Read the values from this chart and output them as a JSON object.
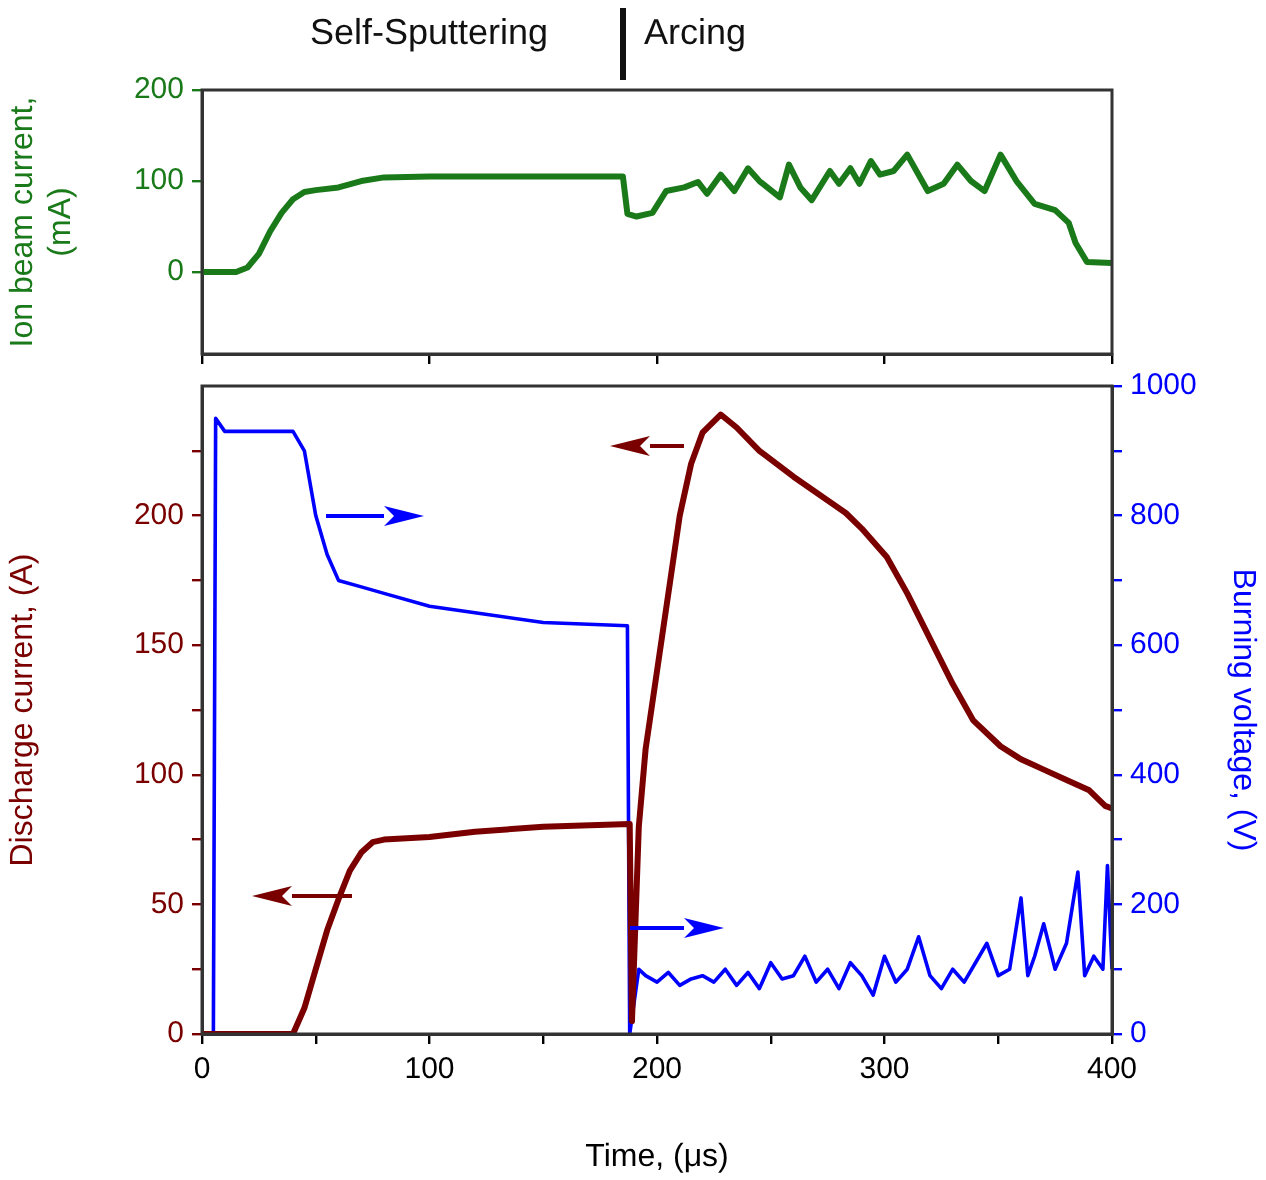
{
  "chart_data": [
    {
      "type": "line",
      "ylabel": "Ion beam current, (mA)",
      "annotations": [
        "Self-Sputtering",
        "Arcing"
      ],
      "xlim": [
        0,
        400
      ],
      "xticks": [
        0,
        100,
        200,
        300,
        400
      ],
      "ylim": [
        -90,
        200
      ],
      "yticks": [
        0,
        100,
        200
      ],
      "tick_labels": "y",
      "series": [
        {
          "color": "#1a7a1a",
          "x": [
            0,
            15,
            20,
            25,
            30,
            35,
            40,
            45,
            50,
            60,
            70,
            80,
            100,
            140,
            185,
            187,
            191,
            198,
            204,
            212,
            218,
            222,
            228,
            234,
            240,
            245,
            254,
            258,
            263,
            268,
            276,
            280,
            285,
            289,
            294,
            298,
            304,
            310,
            319,
            326,
            332,
            338,
            344,
            351,
            358,
            366,
            375,
            381,
            384,
            389,
            400
          ],
          "values": [
            0,
            0,
            5,
            20,
            45,
            65,
            80,
            88,
            90,
            93,
            100,
            104,
            105,
            105,
            105,
            64,
            61,
            65,
            89,
            93,
            99,
            86,
            107,
            89,
            114,
            100,
            82,
            118,
            93,
            79,
            111,
            97,
            114,
            97,
            122,
            107,
            111,
            129,
            89,
            97,
            118,
            100,
            89,
            129,
            100,
            75,
            68,
            54,
            32,
            11,
            10
          ]
        }
      ]
    },
    {
      "type": "line",
      "xlabel": "Time, (μs)",
      "ylabel": "Discharge current, (A)",
      "y2label": "Burning voltage, (V)",
      "xlim": [
        0,
        400
      ],
      "xticks": [
        0,
        {
          "value": 50,
          "label": null
        },
        100,
        {
          "value": 150,
          "label": null
        },
        200,
        {
          "value": 250,
          "label": null
        },
        300,
        {
          "value": 350,
          "label": null
        },
        400
      ],
      "ylim": [
        0,
        250
      ],
      "yticks": [
        0,
        {
          "value": 25,
          "label": null
        },
        50,
        {
          "value": 75,
          "label": null
        },
        100,
        {
          "value": 125,
          "label": null
        },
        150,
        {
          "value": 175,
          "label": null
        },
        200,
        {
          "value": 225,
          "label": null
        }
      ],
      "y2lim": [
        0,
        1000
      ],
      "y2ticks": [
        0,
        {
          "value": 100,
          "label": null
        },
        200,
        {
          "value": 300,
          "label": null
        },
        400,
        {
          "value": 500,
          "label": null
        },
        600,
        {
          "value": 700,
          "label": null
        },
        800,
        {
          "value": 900,
          "label": null
        },
        1000
      ],
      "series": [
        {
          "color": "#7a0000",
          "x": [
            0,
            40,
            45,
            50,
            55,
            60,
            65,
            70,
            75,
            80,
            100,
            120,
            150,
            188,
            189,
            192,
            195,
            200,
            205,
            210,
            215,
            220,
            228,
            235,
            245,
            260,
            283,
            290,
            301,
            310,
            322,
            330,
            339,
            351,
            360,
            370,
            380,
            390,
            397,
            400
          ],
          "values": [
            0,
            0,
            10,
            25,
            40,
            52,
            63,
            70,
            74,
            75,
            76,
            78,
            80,
            81,
            5,
            80,
            110,
            140,
            170,
            200,
            220,
            232,
            239,
            234,
            225,
            215,
            201,
            195,
            184,
            170,
            149,
            135,
            121,
            111,
            106,
            102,
            98,
            94,
            88,
            87
          ]
        },
        {
          "color": "#0000ff",
          "axis": "y2",
          "x": [
            0,
            5,
            6,
            8,
            10,
            40,
            45,
            50,
            55,
            60,
            70,
            80,
            100,
            120,
            150,
            187,
            188,
            190,
            192,
            195,
            200,
            205,
            210,
            215,
            220,
            225,
            230,
            235,
            240,
            245,
            250,
            255,
            260,
            265,
            270,
            275,
            280,
            285,
            290,
            295,
            300,
            305,
            310,
            315,
            320,
            325,
            330,
            335,
            340,
            345,
            350,
            355,
            360,
            363,
            366,
            370,
            375,
            380,
            385,
            388,
            392,
            396,
            398,
            400
          ],
          "values": [
            0,
            0,
            950,
            940,
            930,
            930,
            900,
            800,
            740,
            700,
            690,
            680,
            660,
            650,
            635,
            630,
            0,
            50,
            100,
            90,
            80,
            95,
            75,
            85,
            90,
            80,
            100,
            75,
            95,
            70,
            110,
            85,
            90,
            120,
            80,
            100,
            70,
            110,
            90,
            60,
            120,
            80,
            100,
            150,
            90,
            70,
            100,
            80,
            110,
            140,
            90,
            100,
            210,
            90,
            120,
            170,
            100,
            140,
            250,
            90,
            120,
            100,
            260,
            100
          ]
        }
      ]
    }
  ]
}
